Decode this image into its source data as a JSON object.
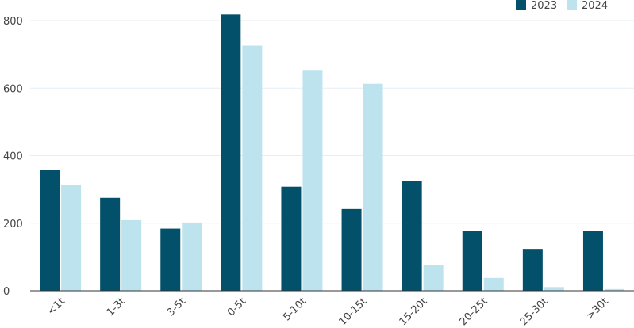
{
  "chart_data": {
    "type": "bar",
    "title": "",
    "xlabel": "",
    "ylabel": "",
    "categories": [
      "<1t",
      "1-3t",
      "3-5t",
      "0-5t",
      "5-10t",
      "10-15t",
      "15-20t",
      "20-25t",
      "25-30t",
      ">30t"
    ],
    "series": [
      {
        "name": "2023",
        "color": "#03506a",
        "values": [
          358,
          275,
          184,
          818,
          308,
          242,
          326,
          177,
          124,
          176
        ]
      },
      {
        "name": "2024",
        "color": "#bde3ef",
        "values": [
          313,
          209,
          202,
          726,
          654,
          613,
          77,
          38,
          11,
          5
        ]
      }
    ],
    "ylim": [
      0,
      800
    ],
    "yticks": [
      0,
      200,
      400,
      600,
      800
    ],
    "grid": true,
    "legend": "top-right"
  }
}
